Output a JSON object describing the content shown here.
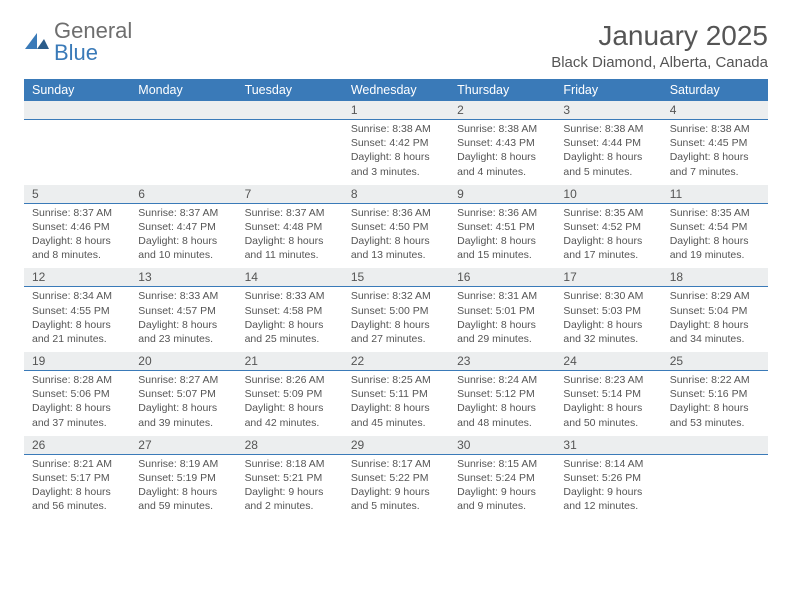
{
  "logo": {
    "text1": "General",
    "text2": "Blue"
  },
  "title": "January 2025",
  "location": "Black Diamond, Alberta, Canada",
  "colors": {
    "header_bg": "#3a7ab8",
    "header_text": "#ffffff",
    "daynum_bg": "#eceeef",
    "divider": "#3a7ab8",
    "body_text": "#555555",
    "logo_gray": "#6e6e6e",
    "logo_blue": "#3a7ab8",
    "page_bg": "#ffffff"
  },
  "day_headers": [
    "Sunday",
    "Monday",
    "Tuesday",
    "Wednesday",
    "Thursday",
    "Friday",
    "Saturday"
  ],
  "weeks": [
    [
      null,
      null,
      null,
      {
        "n": "1",
        "sr": "8:38 AM",
        "ss": "4:42 PM",
        "dl": "8 hours and 3 minutes."
      },
      {
        "n": "2",
        "sr": "8:38 AM",
        "ss": "4:43 PM",
        "dl": "8 hours and 4 minutes."
      },
      {
        "n": "3",
        "sr": "8:38 AM",
        "ss": "4:44 PM",
        "dl": "8 hours and 5 minutes."
      },
      {
        "n": "4",
        "sr": "8:38 AM",
        "ss": "4:45 PM",
        "dl": "8 hours and 7 minutes."
      }
    ],
    [
      {
        "n": "5",
        "sr": "8:37 AM",
        "ss": "4:46 PM",
        "dl": "8 hours and 8 minutes."
      },
      {
        "n": "6",
        "sr": "8:37 AM",
        "ss": "4:47 PM",
        "dl": "8 hours and 10 minutes."
      },
      {
        "n": "7",
        "sr": "8:37 AM",
        "ss": "4:48 PM",
        "dl": "8 hours and 11 minutes."
      },
      {
        "n": "8",
        "sr": "8:36 AM",
        "ss": "4:50 PM",
        "dl": "8 hours and 13 minutes."
      },
      {
        "n": "9",
        "sr": "8:36 AM",
        "ss": "4:51 PM",
        "dl": "8 hours and 15 minutes."
      },
      {
        "n": "10",
        "sr": "8:35 AM",
        "ss": "4:52 PM",
        "dl": "8 hours and 17 minutes."
      },
      {
        "n": "11",
        "sr": "8:35 AM",
        "ss": "4:54 PM",
        "dl": "8 hours and 19 minutes."
      }
    ],
    [
      {
        "n": "12",
        "sr": "8:34 AM",
        "ss": "4:55 PM",
        "dl": "8 hours and 21 minutes."
      },
      {
        "n": "13",
        "sr": "8:33 AM",
        "ss": "4:57 PM",
        "dl": "8 hours and 23 minutes."
      },
      {
        "n": "14",
        "sr": "8:33 AM",
        "ss": "4:58 PM",
        "dl": "8 hours and 25 minutes."
      },
      {
        "n": "15",
        "sr": "8:32 AM",
        "ss": "5:00 PM",
        "dl": "8 hours and 27 minutes."
      },
      {
        "n": "16",
        "sr": "8:31 AM",
        "ss": "5:01 PM",
        "dl": "8 hours and 29 minutes."
      },
      {
        "n": "17",
        "sr": "8:30 AM",
        "ss": "5:03 PM",
        "dl": "8 hours and 32 minutes."
      },
      {
        "n": "18",
        "sr": "8:29 AM",
        "ss": "5:04 PM",
        "dl": "8 hours and 34 minutes."
      }
    ],
    [
      {
        "n": "19",
        "sr": "8:28 AM",
        "ss": "5:06 PM",
        "dl": "8 hours and 37 minutes."
      },
      {
        "n": "20",
        "sr": "8:27 AM",
        "ss": "5:07 PM",
        "dl": "8 hours and 39 minutes."
      },
      {
        "n": "21",
        "sr": "8:26 AM",
        "ss": "5:09 PM",
        "dl": "8 hours and 42 minutes."
      },
      {
        "n": "22",
        "sr": "8:25 AM",
        "ss": "5:11 PM",
        "dl": "8 hours and 45 minutes."
      },
      {
        "n": "23",
        "sr": "8:24 AM",
        "ss": "5:12 PM",
        "dl": "8 hours and 48 minutes."
      },
      {
        "n": "24",
        "sr": "8:23 AM",
        "ss": "5:14 PM",
        "dl": "8 hours and 50 minutes."
      },
      {
        "n": "25",
        "sr": "8:22 AM",
        "ss": "5:16 PM",
        "dl": "8 hours and 53 minutes."
      }
    ],
    [
      {
        "n": "26",
        "sr": "8:21 AM",
        "ss": "5:17 PM",
        "dl": "8 hours and 56 minutes."
      },
      {
        "n": "27",
        "sr": "8:19 AM",
        "ss": "5:19 PM",
        "dl": "8 hours and 59 minutes."
      },
      {
        "n": "28",
        "sr": "8:18 AM",
        "ss": "5:21 PM",
        "dl": "9 hours and 2 minutes."
      },
      {
        "n": "29",
        "sr": "8:17 AM",
        "ss": "5:22 PM",
        "dl": "9 hours and 5 minutes."
      },
      {
        "n": "30",
        "sr": "8:15 AM",
        "ss": "5:24 PM",
        "dl": "9 hours and 9 minutes."
      },
      {
        "n": "31",
        "sr": "8:14 AM",
        "ss": "5:26 PM",
        "dl": "9 hours and 12 minutes."
      },
      null
    ]
  ],
  "labels": {
    "sunrise": "Sunrise:",
    "sunset": "Sunset:",
    "daylight": "Daylight:"
  }
}
